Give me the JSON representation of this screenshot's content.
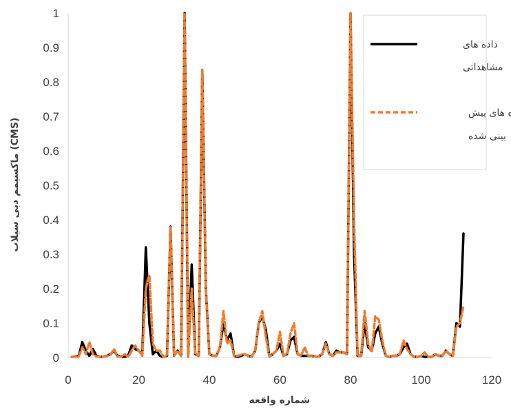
{
  "chart_data": {
    "type": "line",
    "title": "",
    "xlabel": "شماره واقعه",
    "ylabel": "ماکسیمم دبی سیلاب (CMS)",
    "xlim": [
      0,
      120
    ],
    "ylim": [
      0,
      1
    ],
    "x_ticks": [
      "0",
      "20",
      "40",
      "60",
      "80",
      "100",
      "120"
    ],
    "y_ticks": [
      "0",
      "0.1",
      "0.2",
      "0.3",
      "0.4",
      "0.5",
      "0.6",
      "0.7",
      "0.8",
      "0.9",
      "1"
    ],
    "grid": false,
    "legend_position": "top-right",
    "legend_lines": [
      [
        "داده های",
        "مشاهداتی"
      ],
      [
        "داده های پیش",
        "بینی شده"
      ]
    ],
    "x": [
      1,
      2,
      3,
      4,
      5,
      6,
      7,
      8,
      9,
      10,
      11,
      12,
      13,
      14,
      15,
      16,
      17,
      18,
      19,
      20,
      21,
      22,
      23,
      24,
      25,
      26,
      27,
      28,
      29,
      30,
      31,
      32,
      33,
      34,
      35,
      36,
      37,
      38,
      39,
      40,
      41,
      42,
      43,
      44,
      45,
      46,
      47,
      48,
      49,
      50,
      51,
      52,
      53,
      54,
      55,
      56,
      57,
      58,
      59,
      60,
      61,
      62,
      63,
      64,
      65,
      66,
      67,
      68,
      69,
      70,
      71,
      72,
      73,
      74,
      75,
      76,
      77,
      78,
      79,
      80,
      81,
      82,
      83,
      84,
      85,
      86,
      87,
      88,
      89,
      90,
      91,
      92,
      93,
      94,
      95,
      96,
      97,
      98,
      99,
      100,
      101,
      102,
      103,
      104,
      105,
      106,
      107,
      108,
      109,
      110,
      111,
      112
    ],
    "series": [
      {
        "name": "داده های مشاهداتی",
        "color": "#000000",
        "dash": "solid",
        "values": [
          0.002,
          0.003,
          0.005,
          0.045,
          0.02,
          0.005,
          0.025,
          0.005,
          0.002,
          0.003,
          0.005,
          0.01,
          0.02,
          0.005,
          0.003,
          0.002,
          0.005,
          0.035,
          0.025,
          0.02,
          0.01,
          0.32,
          0.1,
          0.01,
          0.02,
          0.005,
          0.002,
          0.005,
          0.38,
          0.005,
          0.02,
          0.005,
          1.0,
          0.003,
          0.27,
          0.01,
          0.005,
          0.835,
          0.2,
          0.01,
          0.005,
          0.005,
          0.03,
          0.1,
          0.05,
          0.07,
          0.005,
          0.002,
          0.005,
          0.01,
          0.005,
          0.003,
          0.02,
          0.1,
          0.12,
          0.08,
          0.003,
          0.01,
          0.02,
          0.04,
          0.005,
          0.01,
          0.05,
          0.06,
          0.01,
          0.005,
          0.005,
          0.005,
          0.005,
          0.003,
          0.003,
          0.01,
          0.045,
          0.01,
          0.005,
          0.02,
          0.015,
          0.015,
          0.01,
          1.0,
          0.3,
          0.005,
          0.005,
          0.1,
          0.03,
          0.02,
          0.07,
          0.09,
          0.04,
          0.005,
          0.002,
          0.005,
          0.005,
          0.01,
          0.03,
          0.04,
          0.01,
          0.002,
          0.002,
          0.005,
          0.002,
          0.002,
          0.002,
          0.01,
          0.005,
          0.005,
          0.02,
          0.01,
          0.005,
          0.1,
          0.09,
          0.36
        ]
      },
      {
        "name": "داده های پیش بینی شده",
        "color": "#ED7D31",
        "dash": "dashed",
        "values": [
          0.002,
          0.002,
          0.003,
          0.03,
          0.01,
          0.045,
          0.01,
          0.003,
          0.002,
          0.003,
          0.005,
          0.008,
          0.025,
          0.003,
          0.003,
          0.01,
          0.002,
          0.02,
          0.035,
          0.02,
          0.005,
          0.2,
          0.24,
          0.04,
          0.02,
          0.02,
          0.002,
          0.005,
          0.38,
          0.005,
          0.02,
          0.005,
          1.0,
          0.003,
          0.2,
          0.01,
          0.005,
          0.835,
          0.2,
          0.01,
          0.005,
          0.005,
          0.03,
          0.135,
          0.04,
          0.05,
          0.005,
          0.005,
          0.008,
          0.01,
          0.005,
          0.003,
          0.02,
          0.1,
          0.135,
          0.06,
          0.003,
          0.01,
          0.02,
          0.075,
          0.005,
          0.01,
          0.07,
          0.1,
          0.01,
          0.005,
          0.03,
          0.005,
          0.005,
          0.003,
          0.003,
          0.01,
          0.04,
          0.01,
          0.005,
          0.015,
          0.015,
          0.015,
          0.01,
          1.0,
          0.4,
          0.005,
          0.005,
          0.135,
          0.04,
          0.015,
          0.12,
          0.11,
          0.05,
          0.005,
          0.002,
          0.005,
          0.005,
          0.01,
          0.05,
          0.025,
          0.01,
          0.002,
          0.002,
          0.005,
          0.015,
          0.002,
          0.002,
          0.01,
          0.005,
          0.005,
          0.02,
          0.01,
          0.005,
          0.09,
          0.1,
          0.15
        ]
      }
    ]
  }
}
